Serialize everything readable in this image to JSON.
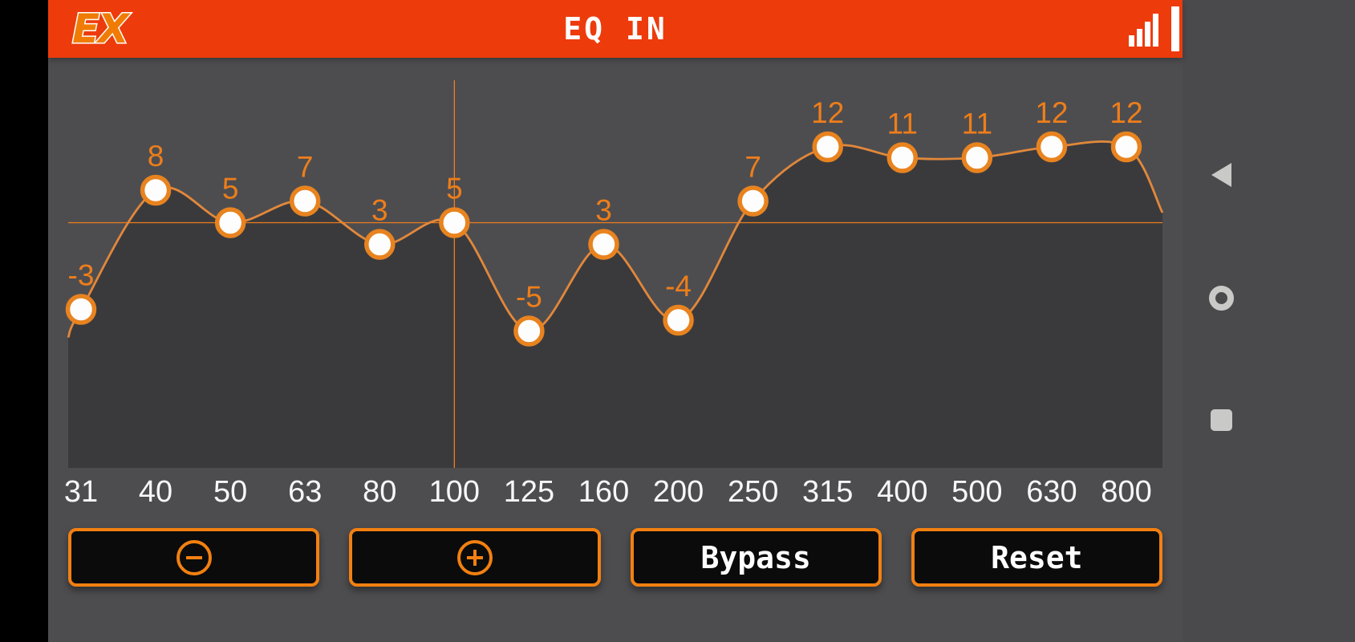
{
  "header": {
    "logo_text": "EX",
    "title": "EQ IN"
  },
  "chart_data": {
    "type": "line",
    "title": "EQ IN",
    "categories": [
      "31",
      "40",
      "50",
      "63",
      "80",
      "100",
      "125",
      "160",
      "200",
      "250",
      "315",
      "400",
      "500",
      "630",
      "800"
    ],
    "values": [
      -3,
      8,
      5,
      7,
      3,
      5,
      -5,
      3,
      -4,
      7,
      12,
      11,
      11,
      12,
      12
    ],
    "xlabel": "",
    "ylabel": "",
    "ylim": [
      -18,
      18
    ],
    "grid": false,
    "legend": "none",
    "point_labels_shown": true,
    "selected_band": {
      "frequency": "100",
      "value": 5,
      "index": 5
    }
  },
  "controls": {
    "decrease_icon": "minus-circle-icon",
    "increase_icon": "plus-circle-icon",
    "bypass_label": "Bypass",
    "reset_label": "Reset"
  },
  "icons": {
    "status": "signal-bars-icon",
    "status_bar": "battery-icon",
    "nav": [
      "back-icon",
      "home-icon",
      "recents-icon"
    ]
  },
  "colors": {
    "header_bg": "#ed3b0c",
    "accent_orange": "#e8821e",
    "curve": "#e2883a",
    "area_fill": "#3a3a3d",
    "background": "#4d4d50",
    "point_fill": "#fdfdfd",
    "point_stroke": "#e8831f",
    "value_label": "#ee7e1a",
    "freq_label": "#f7f7f7"
  }
}
